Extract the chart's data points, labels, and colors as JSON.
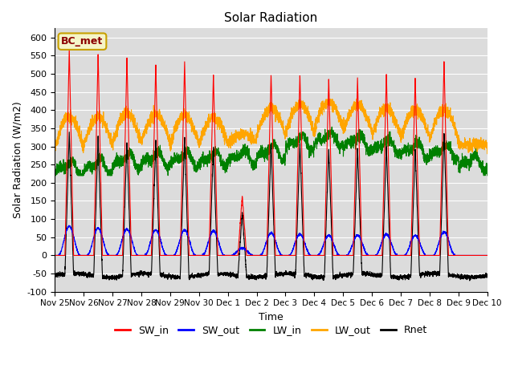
{
  "title": "Solar Radiation",
  "ylabel": "Solar Radiation (W/m2)",
  "xlabel": "Time",
  "ylim": [
    -100,
    625
  ],
  "yticks": [
    -100,
    -50,
    0,
    50,
    100,
    150,
    200,
    250,
    300,
    350,
    400,
    450,
    500,
    550,
    600
  ],
  "label_text": "BC_met",
  "legend_entries": [
    "SW_in",
    "SW_out",
    "LW_in",
    "LW_out",
    "Rnet"
  ],
  "legend_colors": [
    "red",
    "blue",
    "green",
    "orange",
    "black"
  ],
  "bg_color": "#dcdcdc",
  "n_days": 15,
  "xtick_labels": [
    "Nov 25",
    "Nov 26",
    "Nov 27",
    "Nov 28",
    "Nov 29",
    "Nov 30",
    "Dec 1",
    "Dec 2",
    "Dec 3",
    "Dec 4",
    "Dec 5",
    "Dec 6",
    "Dec 7",
    "Dec 8",
    "Dec 9",
    "Dec 10"
  ],
  "sw_in_peaks": [
    570,
    555,
    545,
    525,
    535,
    500,
    165,
    500,
    500,
    490,
    490,
    500,
    490,
    535,
    0
  ],
  "sw_out_peaks": [
    80,
    75,
    72,
    70,
    70,
    68,
    20,
    62,
    58,
    55,
    55,
    58,
    55,
    65,
    0
  ],
  "lw_in_base": [
    240,
    245,
    260,
    265,
    265,
    265,
    270,
    285,
    310,
    320,
    310,
    300,
    290,
    285,
    255
  ],
  "lw_out_base": [
    295,
    300,
    310,
    310,
    305,
    305,
    310,
    330,
    340,
    350,
    340,
    330,
    325,
    320,
    305
  ],
  "rnet_night": -55,
  "rnet_peaks": [
    340,
    325,
    315,
    315,
    325,
    300,
    120,
    310,
    310,
    295,
    295,
    300,
    295,
    340,
    0
  ]
}
